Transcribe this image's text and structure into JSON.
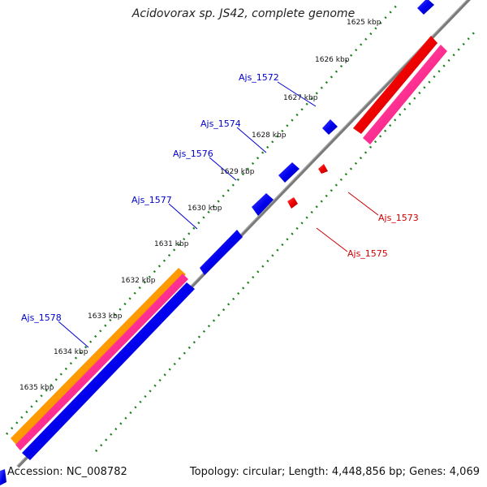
{
  "title": "Acidovorax sp. JS42, complete genome",
  "footer": {
    "accession": "Accession: NC_008782",
    "info": "Topology: circular; Length: 4,448,856 bp; Genes: 4,069"
  },
  "ticks": [
    {
      "label": "1625 kbp"
    },
    {
      "label": "1626 kbp"
    },
    {
      "label": "1627 kbp"
    },
    {
      "label": "1628 kbp"
    },
    {
      "label": "1629 kbp"
    },
    {
      "label": "1630 kbp"
    },
    {
      "label": "1631 kbp"
    },
    {
      "label": "1632 kbp"
    },
    {
      "label": "1633 kbp"
    },
    {
      "label": "1634 kbp"
    },
    {
      "label": "1635 kbp"
    }
  ],
  "genes": [
    {
      "label": "Ajs_1572",
      "strand": "forward"
    },
    {
      "label": "Ajs_1574",
      "strand": "forward"
    },
    {
      "label": "Ajs_1576",
      "strand": "forward"
    },
    {
      "label": "Ajs_1577",
      "strand": "forward"
    },
    {
      "label": "Ajs_1578",
      "strand": "forward"
    },
    {
      "label": "Ajs_1573",
      "strand": "reverse"
    },
    {
      "label": "Ajs_1575",
      "strand": "reverse"
    }
  ],
  "colors": {
    "forward_gene": "#0000ee",
    "reverse_gene": "#ee0000",
    "pink_feature": "#ff2f92",
    "orange_feature": "#ff9900",
    "backbone": "#888888",
    "tick_dots": "#1a7f1a",
    "forward_label": "#0000cc",
    "reverse_label": "#cc0000"
  }
}
